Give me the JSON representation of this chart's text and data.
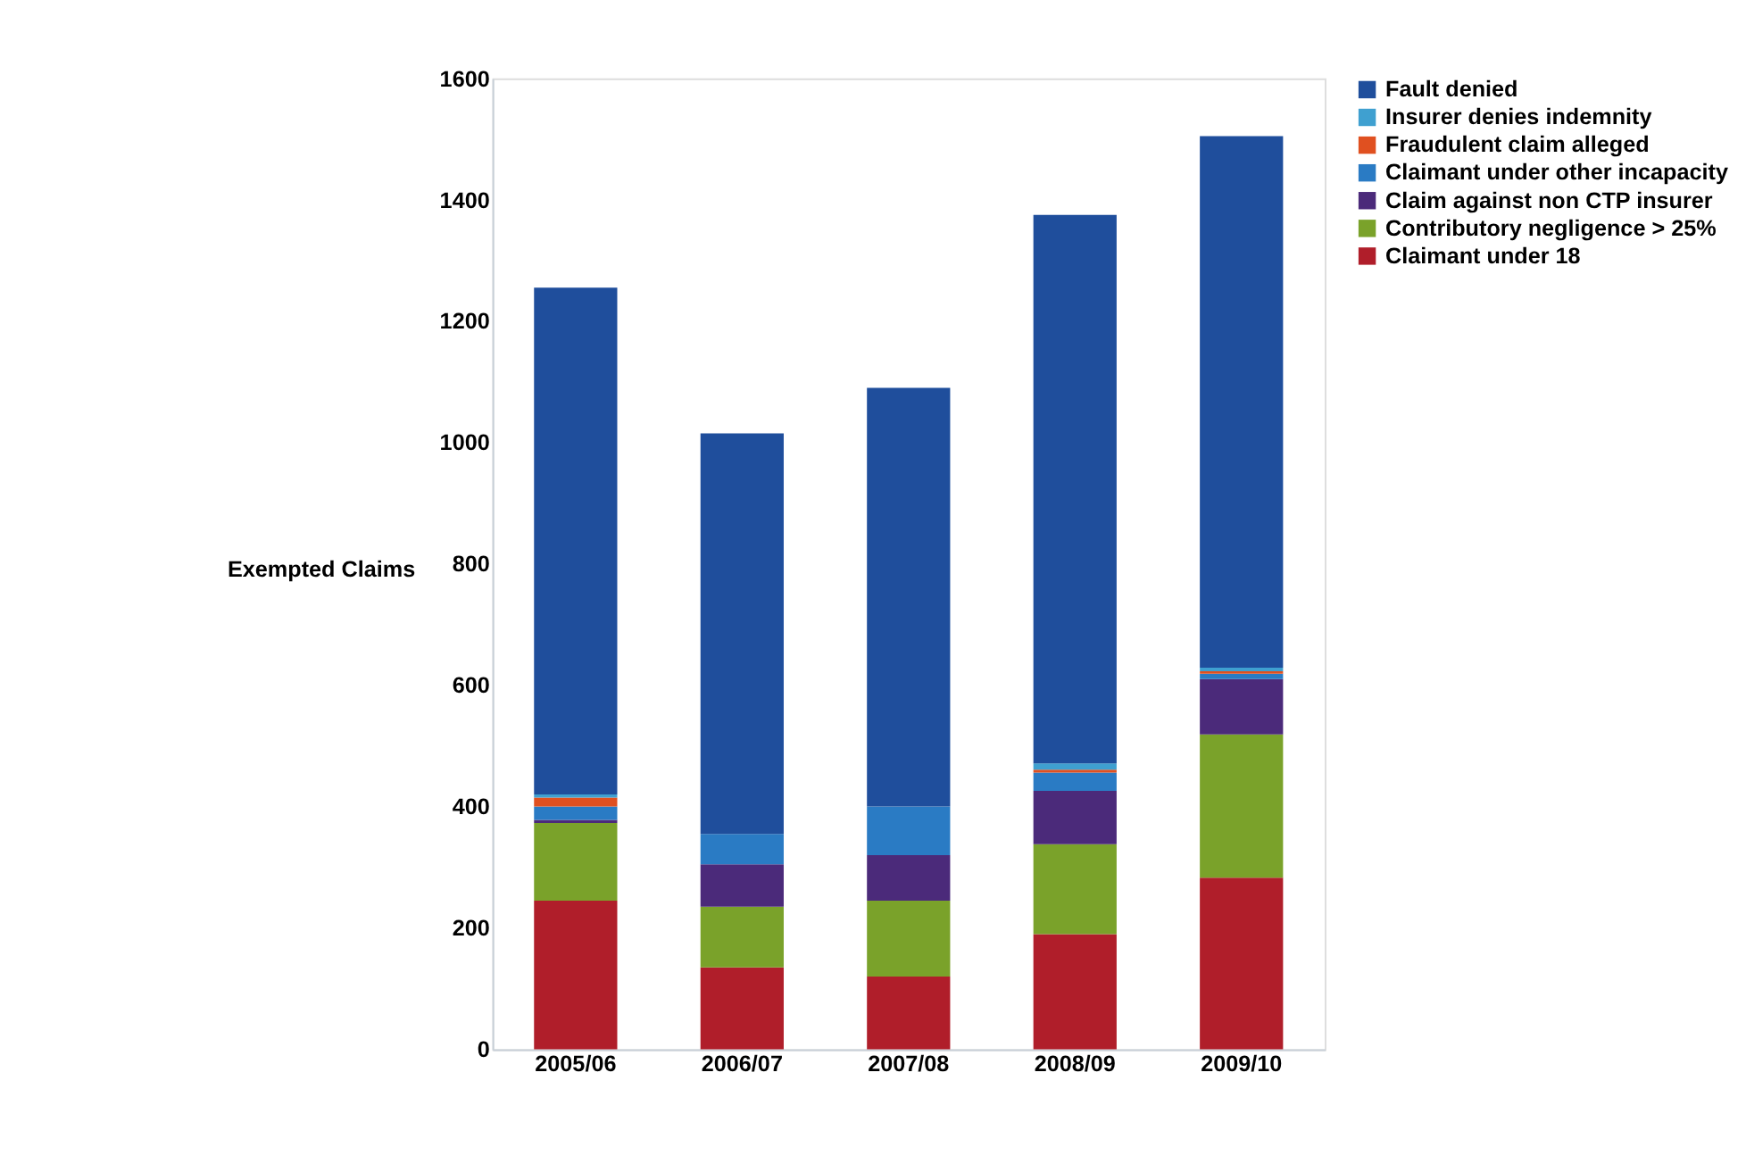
{
  "chart_data": {
    "type": "bar",
    "stacked": true,
    "ylabel": "Exempted Claims",
    "categories": [
      "2005/06",
      "2006/07",
      "2007/08",
      "2008/09",
      "2009/10"
    ],
    "series": [
      {
        "name": "Claimant under 18",
        "color": "#b01e2a",
        "values": [
          245,
          135,
          120,
          190,
          283
        ]
      },
      {
        "name": "Contributory negligence > 25%",
        "color": "#7aa22a",
        "values": [
          128,
          100,
          125,
          148,
          236
        ]
      },
      {
        "name": "Claim against non CTP insurer",
        "color": "#4b2a7a",
        "values": [
          5,
          70,
          75,
          88,
          91
        ]
      },
      {
        "name": "Claimant under other incapacity",
        "color": "#2a7bc4",
        "values": [
          22,
          50,
          80,
          30,
          9
        ]
      },
      {
        "name": "Fraudulent claim alleged",
        "color": "#e05020",
        "values": [
          15,
          0,
          0,
          5,
          4
        ]
      },
      {
        "name": "Insurer denies indemnity",
        "color": "#3fa0d0",
        "values": [
          5,
          0,
          0,
          10,
          6
        ]
      },
      {
        "name": "Fault denied",
        "color": "#1f4e9c",
        "values": [
          835,
          660,
          690,
          904,
          876
        ]
      }
    ],
    "ylim": [
      0,
      1600
    ],
    "yticks": [
      0,
      200,
      400,
      600,
      800,
      1000,
      1200,
      1400,
      1600
    ],
    "grid": false,
    "legend": "right"
  }
}
